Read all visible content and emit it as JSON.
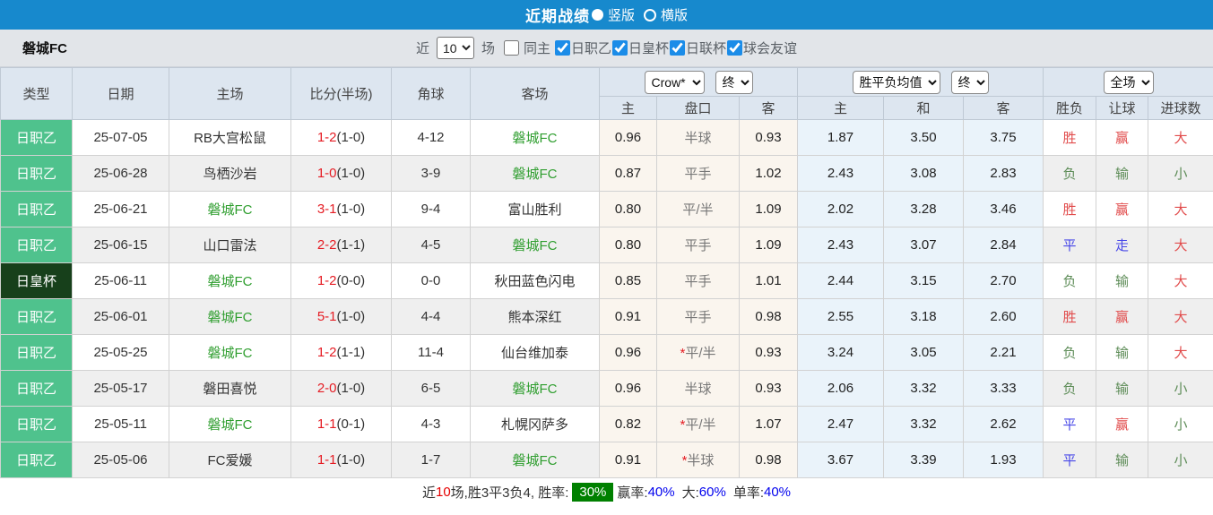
{
  "title_bar": {
    "title": "近期战绩",
    "options": [
      {
        "label": "竖版",
        "selected": true
      },
      {
        "label": "横版",
        "selected": false
      }
    ]
  },
  "filter_bar": {
    "team": "磐城FC",
    "near_label": "近",
    "match_count": "10",
    "games_label": "场",
    "same_home": {
      "label": "同主",
      "checked": false
    },
    "competitions": [
      {
        "label": "日职乙",
        "checked": true
      },
      {
        "label": "日皇杯",
        "checked": true
      },
      {
        "label": "日联杯",
        "checked": true
      },
      {
        "label": "球会友谊",
        "checked": true
      }
    ]
  },
  "table": {
    "columns": [
      "类型",
      "日期",
      "主场",
      "比分(半场)",
      "角球",
      "客场"
    ],
    "odds_group": {
      "bookmaker_select": "Crow*",
      "time_select": "终",
      "subcols": [
        "主",
        "盘口",
        "客"
      ]
    },
    "avg_group": {
      "select": "胜平负均值",
      "time_select": "终",
      "subcols": [
        "主",
        "和",
        "客"
      ]
    },
    "result_group": {
      "select": "全场",
      "subcols": [
        "胜负",
        "让球",
        "进球数"
      ]
    },
    "rows": [
      {
        "type": "日职乙",
        "cup": false,
        "date": "25-07-05",
        "home": "RB大宫松鼠",
        "home_self": false,
        "score": "1-2",
        "half": "(1-0)",
        "corners": "4-12",
        "away": "磐城FC",
        "away_self": true,
        "o1": "0.96",
        "hcap": "半球",
        "star": false,
        "o2": "0.93",
        "a1": "1.87",
        "a2": "3.50",
        "a3": "3.75",
        "res": [
          "胜",
          "赢",
          "大"
        ],
        "res_colors": [
          "red",
          "red",
          "red"
        ]
      },
      {
        "type": "日职乙",
        "cup": false,
        "date": "25-06-28",
        "home": "鸟栖沙岩",
        "home_self": false,
        "score": "1-0",
        "half": "(1-0)",
        "corners": "3-9",
        "away": "磐城FC",
        "away_self": true,
        "o1": "0.87",
        "hcap": "平手",
        "star": false,
        "o2": "1.02",
        "a1": "2.43",
        "a2": "3.08",
        "a3": "2.83",
        "res": [
          "负",
          "输",
          "小"
        ],
        "res_colors": [
          "green",
          "green",
          "green"
        ]
      },
      {
        "type": "日职乙",
        "cup": false,
        "date": "25-06-21",
        "home": "磐城FC",
        "home_self": true,
        "score": "3-1",
        "half": "(1-0)",
        "corners": "9-4",
        "away": "富山胜利",
        "away_self": false,
        "o1": "0.80",
        "hcap": "平/半",
        "star": false,
        "o2": "1.09",
        "a1": "2.02",
        "a2": "3.28",
        "a3": "3.46",
        "res": [
          "胜",
          "赢",
          "大"
        ],
        "res_colors": [
          "red",
          "red",
          "red"
        ]
      },
      {
        "type": "日职乙",
        "cup": false,
        "date": "25-06-15",
        "home": "山口雷法",
        "home_self": false,
        "score": "2-2",
        "half": "(1-1)",
        "corners": "4-5",
        "away": "磐城FC",
        "away_self": true,
        "o1": "0.80",
        "hcap": "平手",
        "star": false,
        "o2": "1.09",
        "a1": "2.43",
        "a2": "3.07",
        "a3": "2.84",
        "res": [
          "平",
          "走",
          "大"
        ],
        "res_colors": [
          "blue",
          "blue",
          "red"
        ]
      },
      {
        "type": "日皇杯",
        "cup": true,
        "date": "25-06-11",
        "home": "磐城FC",
        "home_self": true,
        "score": "1-2",
        "half": "(0-0)",
        "corners": "0-0",
        "away": "秋田蓝色闪电",
        "away_self": false,
        "o1": "0.85",
        "hcap": "平手",
        "star": false,
        "o2": "1.01",
        "a1": "2.44",
        "a2": "3.15",
        "a3": "2.70",
        "res": [
          "负",
          "输",
          "大"
        ],
        "res_colors": [
          "green",
          "green",
          "red"
        ]
      },
      {
        "type": "日职乙",
        "cup": false,
        "date": "25-06-01",
        "home": "磐城FC",
        "home_self": true,
        "score": "5-1",
        "half": "(1-0)",
        "corners": "4-4",
        "away": "熊本深红",
        "away_self": false,
        "o1": "0.91",
        "hcap": "平手",
        "star": false,
        "o2": "0.98",
        "a1": "2.55",
        "a2": "3.18",
        "a3": "2.60",
        "res": [
          "胜",
          "赢",
          "大"
        ],
        "res_colors": [
          "red",
          "red",
          "red"
        ]
      },
      {
        "type": "日职乙",
        "cup": false,
        "date": "25-05-25",
        "home": "磐城FC",
        "home_self": true,
        "score": "1-2",
        "half": "(1-1)",
        "corners": "11-4",
        "away": "仙台维加泰",
        "away_self": false,
        "o1": "0.96",
        "hcap": "平/半",
        "star": true,
        "o2": "0.93",
        "a1": "3.24",
        "a2": "3.05",
        "a3": "2.21",
        "res": [
          "负",
          "输",
          "大"
        ],
        "res_colors": [
          "green",
          "green",
          "red"
        ]
      },
      {
        "type": "日职乙",
        "cup": false,
        "date": "25-05-17",
        "home": "磐田喜悦",
        "home_self": false,
        "score": "2-0",
        "half": "(1-0)",
        "corners": "6-5",
        "away": "磐城FC",
        "away_self": true,
        "o1": "0.96",
        "hcap": "半球",
        "star": false,
        "o2": "0.93",
        "a1": "2.06",
        "a2": "3.32",
        "a3": "3.33",
        "res": [
          "负",
          "输",
          "小"
        ],
        "res_colors": [
          "green",
          "green",
          "green"
        ]
      },
      {
        "type": "日职乙",
        "cup": false,
        "date": "25-05-11",
        "home": "磐城FC",
        "home_self": true,
        "score": "1-1",
        "half": "(0-1)",
        "corners": "4-3",
        "away": "札幌冈萨多",
        "away_self": false,
        "o1": "0.82",
        "hcap": "平/半",
        "star": true,
        "o2": "1.07",
        "a1": "2.47",
        "a2": "3.32",
        "a3": "2.62",
        "res": [
          "平",
          "赢",
          "小"
        ],
        "res_colors": [
          "blue",
          "red",
          "green"
        ]
      },
      {
        "type": "日职乙",
        "cup": false,
        "date": "25-05-06",
        "home": "FC爱媛",
        "home_self": false,
        "score": "1-1",
        "half": "(1-0)",
        "corners": "1-7",
        "away": "磐城FC",
        "away_self": true,
        "o1": "0.91",
        "hcap": "半球",
        "star": true,
        "o2": "0.98",
        "a1": "3.67",
        "a2": "3.39",
        "a3": "1.93",
        "res": [
          "平",
          "输",
          "小"
        ],
        "res_colors": [
          "blue",
          "green",
          "green"
        ]
      }
    ]
  },
  "summary": {
    "s1": "近",
    "s2": "10",
    "s3": "场,胜3平3负4, 胜率:",
    "win_rate": "30%",
    "s4": "赢率:",
    "v1": "40%",
    "s5": "大:",
    "v2": "60%",
    "s6": "单率:",
    "v3": "40%"
  },
  "colors": {
    "bar_blue": "#1789cd",
    "league_green": "#4fc28d",
    "cup_dark_green": "#17401b",
    "self_team_green": "#2f9e2f",
    "score_red": "#e51c23",
    "result_red": "#e14b4b",
    "result_green": "#5d8c57",
    "result_blue": "#4848e8",
    "win_rate_bg": "#008000",
    "summary_blue": "#0000ee"
  }
}
